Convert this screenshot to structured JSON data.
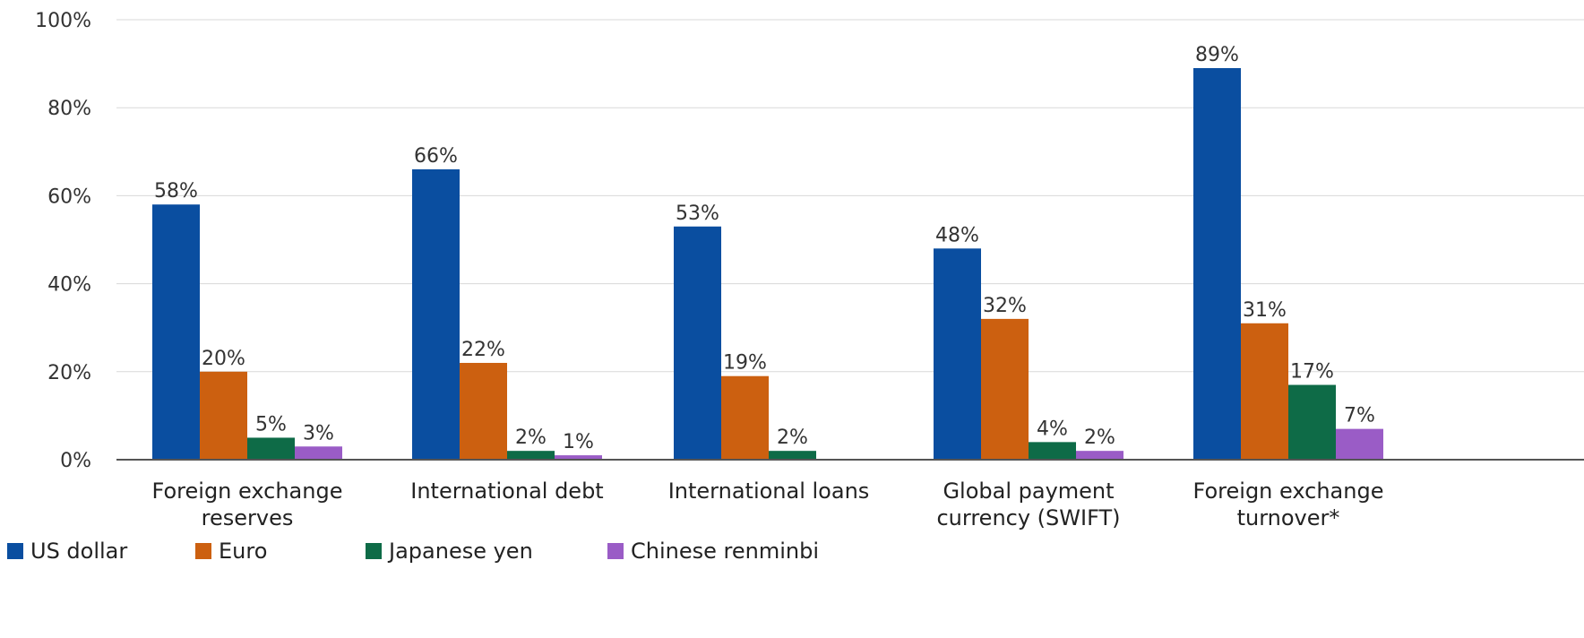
{
  "chart_data": {
    "type": "bar",
    "title": "",
    "xlabel": "",
    "ylabel": "",
    "ylim": [
      0,
      100
    ],
    "yticks": [
      0,
      20,
      40,
      60,
      80,
      100
    ],
    "ytick_format": "{v}%",
    "grid": true,
    "legend_position": "bottom-left",
    "categories": [
      [
        "Foreign exchange",
        "reserves"
      ],
      [
        "International debt"
      ],
      [
        "International loans"
      ],
      [
        "Global payment",
        "currency (SWIFT)"
      ],
      [
        "Foreign exchange",
        "turnover*"
      ]
    ],
    "series": [
      {
        "name": "US dollar",
        "color": "#0a4ea0",
        "values": [
          58,
          66,
          53,
          48,
          89
        ],
        "labels": [
          "58%",
          "66%",
          "53%",
          "48%",
          "89%"
        ]
      },
      {
        "name": "Euro",
        "color": "#cc6010",
        "values": [
          20,
          22,
          19,
          32,
          31
        ],
        "labels": [
          "20%",
          "22%",
          "19%",
          "32%",
          "31%"
        ]
      },
      {
        "name": "Japanese yen",
        "color": "#0e6b47",
        "values": [
          5,
          2,
          2,
          4,
          17
        ],
        "labels": [
          "5%",
          "2%",
          "2%",
          "4%",
          "17%"
        ]
      },
      {
        "name": "Chinese renminbi",
        "color": "#9a5cc6",
        "values": [
          3,
          1,
          null,
          2,
          7
        ],
        "labels": [
          "3%",
          "1%",
          null,
          "2%",
          "7%"
        ]
      }
    ]
  }
}
